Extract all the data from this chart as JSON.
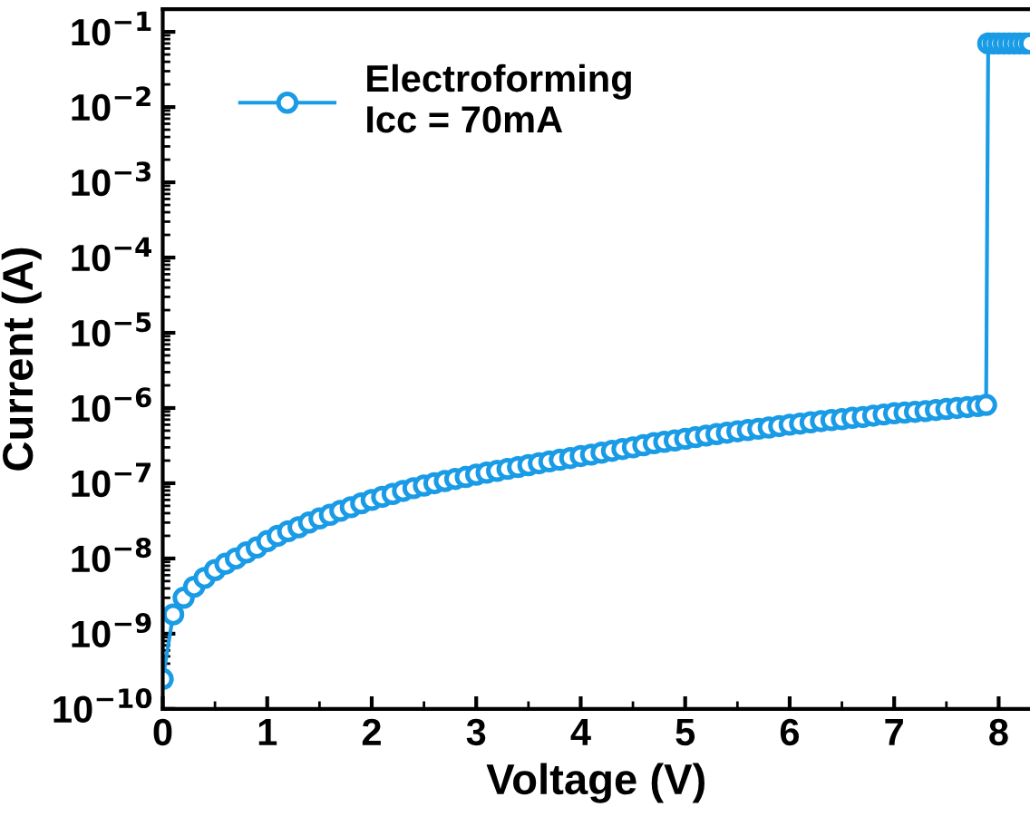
{
  "chart_data": {
    "type": "line",
    "xlabel": "Voltage (V)",
    "ylabel": "Current (A)",
    "xlim": [
      0,
      8.3
    ],
    "ylim": [
      1e-10,
      0.2
    ],
    "log": "y",
    "xticks": [
      0,
      1,
      2,
      3,
      4,
      5,
      6,
      7,
      8
    ],
    "yticks": [
      {
        "value": 1e-10,
        "label": "10$^{−10}$"
      },
      {
        "value": 1e-09,
        "label": "10$^{−9}$"
      },
      {
        "value": 1e-08,
        "label": "10$^{−8}$"
      },
      {
        "value": 1e-07,
        "label": "10$^{−7}$"
      },
      {
        "value": 1e-06,
        "label": "10$^{−6}$"
      },
      {
        "value": 1e-05,
        "label": "10$^{−5}$"
      },
      {
        "value": 0.0001,
        "label": "10$^{−4}$"
      },
      {
        "value": 0.001,
        "label": "10$^{−3}$"
      },
      {
        "value": 0.01,
        "label": "10$^{−2}$"
      },
      {
        "value": 0.1,
        "label": "10$^{−1}$"
      }
    ],
    "grid": false,
    "legend": "top left",
    "marker": "circle",
    "line_style": "solid",
    "series": [
      {
        "name": "Electroforming\nIcc = 70mA",
        "color": "#1a9be6",
        "x": [
          0,
          0.1,
          0.2,
          0.3,
          0.4,
          0.5,
          0.6,
          0.7,
          0.8,
          0.9,
          1.0,
          1.1,
          1.2,
          1.3,
          1.4,
          1.5,
          1.6,
          1.7,
          1.8,
          1.9,
          2.0,
          2.1,
          2.2,
          2.3,
          2.4,
          2.5,
          2.6,
          2.7,
          2.8,
          2.9,
          3.0,
          3.1,
          3.2,
          3.3,
          3.4,
          3.5,
          3.6,
          3.7,
          3.8,
          3.9,
          4.0,
          4.1,
          4.2,
          4.3,
          4.4,
          4.5,
          4.6,
          4.7,
          4.8,
          4.9,
          5.0,
          5.1,
          5.2,
          5.3,
          5.4,
          5.5,
          5.6,
          5.7,
          5.8,
          5.9,
          6.0,
          6.1,
          6.2,
          6.3,
          6.4,
          6.5,
          6.6,
          6.7,
          6.8,
          6.9,
          7.0,
          7.1,
          7.2,
          7.3,
          7.4,
          7.5,
          7.6,
          7.7,
          7.8,
          7.88,
          7.9,
          7.95,
          8.0,
          8.05,
          8.1,
          8.15,
          8.2,
          8.25,
          8.3
        ],
        "values": [
          2.5e-10,
          1.8e-09,
          3e-09,
          4.2e-09,
          5.5e-09,
          7e-09,
          8.5e-09,
          1e-08,
          1.2e-08,
          1.4e-08,
          1.7e-08,
          2e-08,
          2.3e-08,
          2.6e-08,
          3e-08,
          3.4e-08,
          3.8e-08,
          4.3e-08,
          4.8e-08,
          5.4e-08,
          6e-08,
          6.6e-08,
          7.2e-08,
          7.9e-08,
          8.6e-08,
          9.3e-08,
          1e-07,
          1.07e-07,
          1.14e-07,
          1.21e-07,
          1.3e-07,
          1.38e-07,
          1.46e-07,
          1.55e-07,
          1.64e-07,
          1.74e-07,
          1.84e-07,
          1.95e-07,
          2.05e-07,
          2.16e-07,
          2.3e-07,
          2.4e-07,
          2.55e-07,
          2.7e-07,
          2.85e-07,
          3e-07,
          3.2e-07,
          3.4e-07,
          3.55e-07,
          3.7e-07,
          3.9e-07,
          4.1e-07,
          4.3e-07,
          4.5e-07,
          4.7e-07,
          4.9e-07,
          5.1e-07,
          5.3e-07,
          5.5e-07,
          5.75e-07,
          6e-07,
          6.2e-07,
          6.45e-07,
          6.7e-07,
          6.9e-07,
          7.1e-07,
          7.4e-07,
          7.6e-07,
          7.9e-07,
          8.2e-07,
          8.5e-07,
          8.7e-07,
          8.9e-07,
          9.1e-07,
          9.4e-07,
          9.7e-07,
          1e-06,
          1.03e-06,
          1.06e-06,
          1.1e-06,
          0.07,
          0.07,
          0.07,
          0.07,
          0.07,
          0.07,
          0.07,
          0.07,
          0.07
        ]
      }
    ]
  }
}
